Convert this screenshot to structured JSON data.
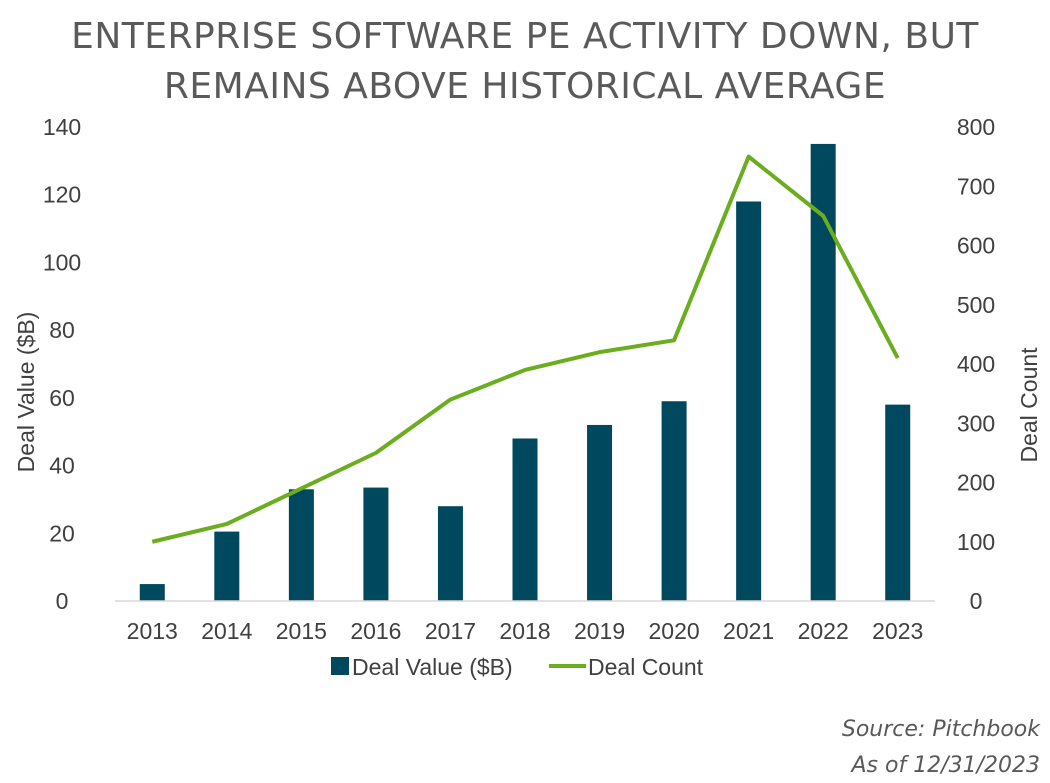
{
  "title_lines": [
    "ENTERPRISE SOFTWARE PE ACTIVITY DOWN, BUT",
    "REMAINS ABOVE HISTORICAL AVERAGE"
  ],
  "source": "Source: Pitchbook",
  "as_of": "As of 12/31/2023",
  "colors": {
    "bar": "#00485d",
    "line": "#6aad1e",
    "text": "#404040",
    "axis": "#d9d9d9"
  },
  "chart_data": {
    "type": "bar+line",
    "title": "ENTERPRISE SOFTWARE PE ACTIVITY DOWN, BUT REMAINS ABOVE HISTORICAL AVERAGE",
    "categories": [
      "2013",
      "2014",
      "2015",
      "2016",
      "2017",
      "2018",
      "2019",
      "2020",
      "2021",
      "2022",
      "2023"
    ],
    "series": [
      {
        "name": "Deal Value ($B)",
        "type": "bar",
        "axis": "left",
        "values": [
          5,
          20.5,
          33,
          33.5,
          28,
          48,
          52,
          59,
          118,
          135,
          58
        ]
      },
      {
        "name": "Deal Count",
        "type": "line",
        "axis": "right",
        "values": [
          100,
          130,
          190,
          250,
          340,
          390,
          420,
          440,
          750,
          650,
          410
        ]
      }
    ],
    "y_left": {
      "label": "Deal Value ($B)",
      "min": 0,
      "max": 140,
      "ticks": [
        "0",
        "20",
        "40",
        "60",
        "80",
        "100",
        "120",
        "140"
      ]
    },
    "y_right": {
      "label": "Deal Count",
      "min": 0,
      "max": 800,
      "ticks": [
        "0",
        "100",
        "200",
        "300",
        "400",
        "500",
        "600",
        "700",
        "800"
      ]
    },
    "grid": false,
    "legend": "bottom-center"
  }
}
